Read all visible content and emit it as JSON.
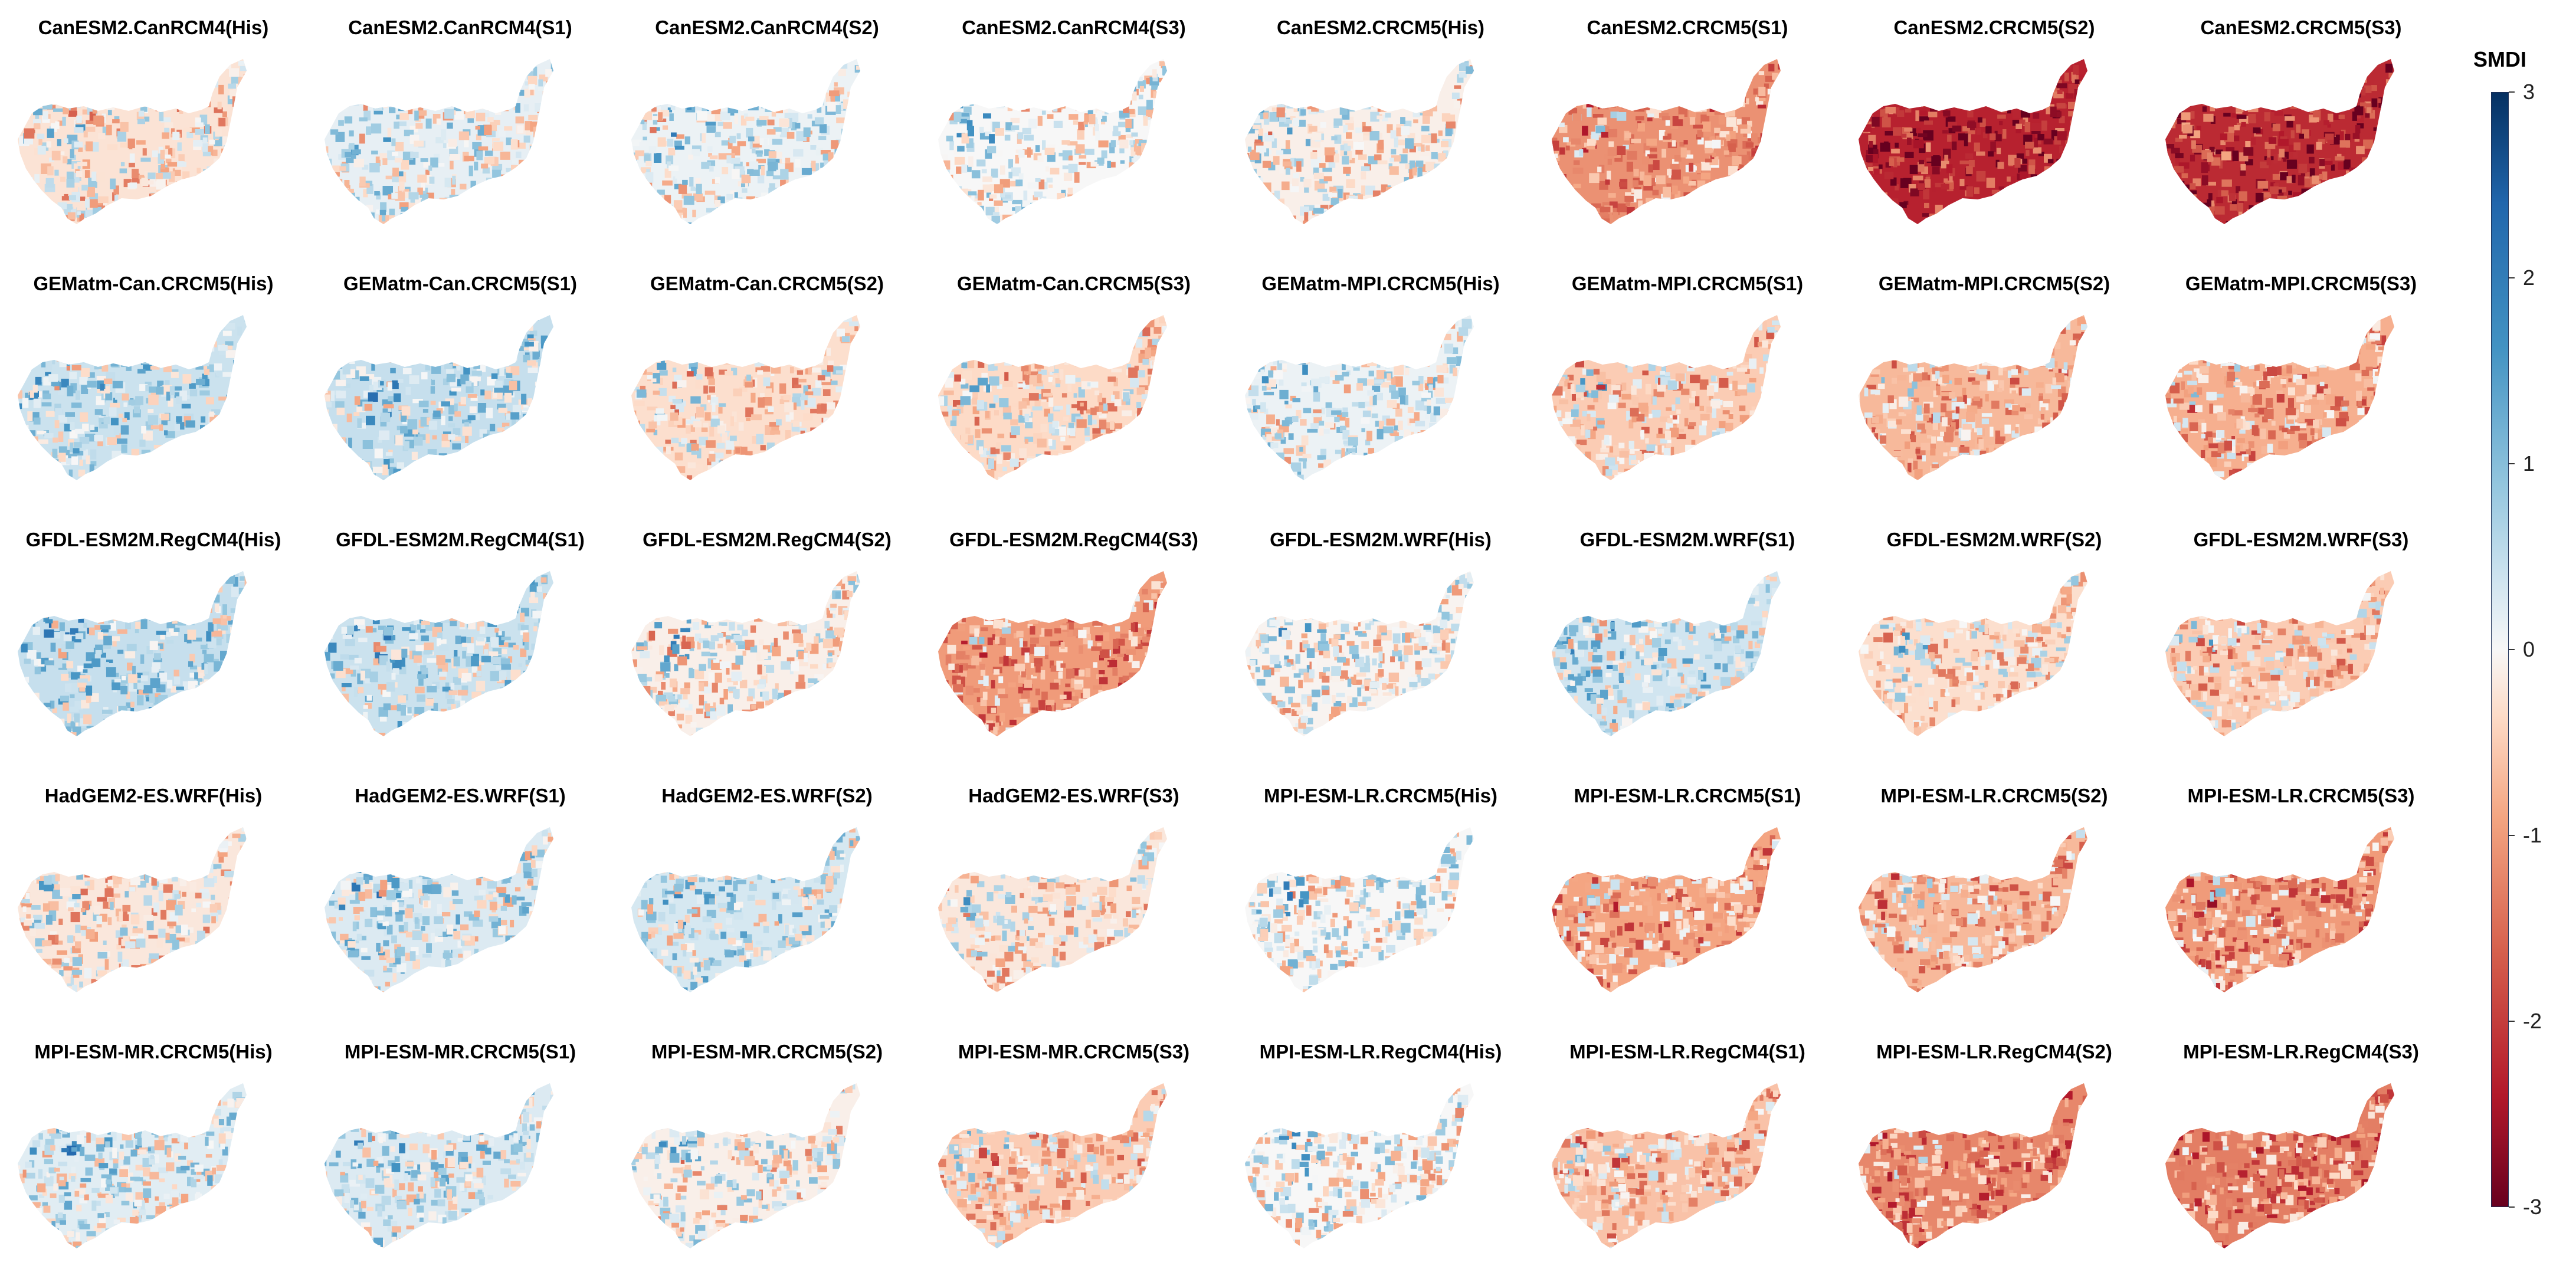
{
  "chart_data": {
    "type": "choropleth-map-grid",
    "variable": "SMDI",
    "colorbar": {
      "title": "SMDI",
      "range": [
        -3,
        3
      ],
      "ticks": [
        "3",
        "2",
        "1",
        "0",
        "-1",
        "-2",
        "-3"
      ],
      "colors": {
        "low": "#67001f",
        "mid": "#f7f7f7",
        "high": "#053061"
      }
    },
    "panels": [
      {
        "title": "CanESM2.CanRCM4(His)",
        "mean": -0.25
      },
      {
        "title": "CanESM2.CanRCM4(S1)",
        "mean": 0.15
      },
      {
        "title": "CanESM2.CanRCM4(S2)",
        "mean": 0.1
      },
      {
        "title": "CanESM2.CanRCM4(S3)",
        "mean": 0.0
      },
      {
        "title": "CanESM2.CRCM5(His)",
        "mean": -0.1
      },
      {
        "title": "CanESM2.CRCM5(S1)",
        "mean": -1.1
      },
      {
        "title": "CanESM2.CRCM5(S2)",
        "mean": -2.3
      },
      {
        "title": "CanESM2.CRCM5(S3)",
        "mean": -2.2
      },
      {
        "title": "GEMatm-Can.CRCM5(His)",
        "mean": 0.4
      },
      {
        "title": "GEMatm-Can.CRCM5(S1)",
        "mean": 0.45
      },
      {
        "title": "GEMatm-Can.CRCM5(S2)",
        "mean": -0.3
      },
      {
        "title": "GEMatm-Can.CRCM5(S3)",
        "mean": -0.35
      },
      {
        "title": "GEMatm-MPI.CRCM5(His)",
        "mean": 0.1
      },
      {
        "title": "GEMatm-MPI.CRCM5(S1)",
        "mean": -0.5
      },
      {
        "title": "GEMatm-MPI.CRCM5(S2)",
        "mean": -0.7
      },
      {
        "title": "GEMatm-MPI.CRCM5(S3)",
        "mean": -0.8
      },
      {
        "title": "GFDL-ESM2M.RegCM4(His)",
        "mean": 0.45
      },
      {
        "title": "GFDL-ESM2M.RegCM4(S1)",
        "mean": 0.4
      },
      {
        "title": "GFDL-ESM2M.RegCM4(S2)",
        "mean": -0.1
      },
      {
        "title": "GFDL-ESM2M.RegCM4(S3)",
        "mean": -1.0
      },
      {
        "title": "GFDL-ESM2M.WRF(His)",
        "mean": -0.05
      },
      {
        "title": "GFDL-ESM2M.WRF(S1)",
        "mean": 0.35
      },
      {
        "title": "GFDL-ESM2M.WRF(S2)",
        "mean": -0.3
      },
      {
        "title": "GFDL-ESM2M.WRF(S3)",
        "mean": -0.5
      },
      {
        "title": "HadGEM2-ES.WRF(His)",
        "mean": -0.2
      },
      {
        "title": "HadGEM2-ES.WRF(S1)",
        "mean": 0.25
      },
      {
        "title": "HadGEM2-ES.WRF(S2)",
        "mean": 0.3
      },
      {
        "title": "HadGEM2-ES.WRF(S3)",
        "mean": -0.2
      },
      {
        "title": "MPI-ESM-LR.CRCM5(His)",
        "mean": 0.0
      },
      {
        "title": "MPI-ESM-LR.CRCM5(S1)",
        "mean": -0.9
      },
      {
        "title": "MPI-ESM-LR.CRCM5(S2)",
        "mean": -0.7
      },
      {
        "title": "MPI-ESM-LR.CRCM5(S3)",
        "mean": -1.0
      },
      {
        "title": "MPI-ESM-MR.CRCM5(His)",
        "mean": 0.2
      },
      {
        "title": "MPI-ESM-MR.CRCM5(S1)",
        "mean": 0.25
      },
      {
        "title": "MPI-ESM-MR.CRCM5(S2)",
        "mean": -0.1
      },
      {
        "title": "MPI-ESM-MR.CRCM5(S3)",
        "mean": -0.5
      },
      {
        "title": "MPI-ESM-LR.RegCM4(His)",
        "mean": 0.0
      },
      {
        "title": "MPI-ESM-LR.RegCM4(S1)",
        "mean": -0.6
      },
      {
        "title": "MPI-ESM-LR.RegCM4(S2)",
        "mean": -1.2
      },
      {
        "title": "MPI-ESM-LR.RegCM4(S3)",
        "mean": -1.3
      }
    ]
  }
}
